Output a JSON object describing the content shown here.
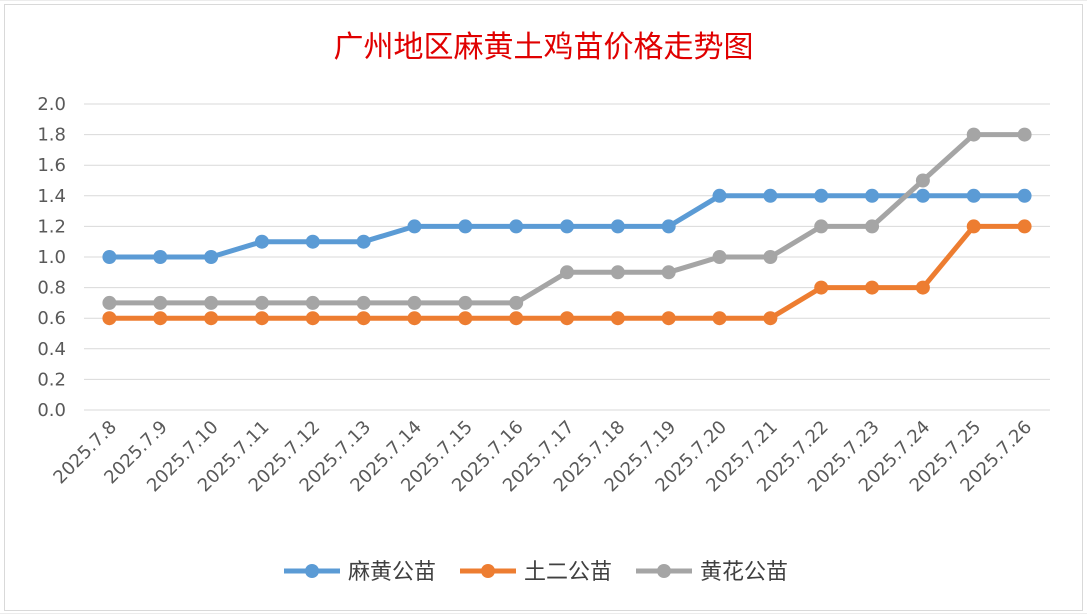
{
  "chart_data": {
    "type": "line",
    "title": "广州地区麻黄土鸡苗价格走势图",
    "xlabel": "",
    "ylabel": "",
    "categories": [
      "2025.7.8",
      "2025.7.9",
      "2025.7.10",
      "2025.7.11",
      "2025.7.12",
      "2025.7.13",
      "2025.7.14",
      "2025.7.15",
      "2025.7.16",
      "2025.7.17",
      "2025.7.18",
      "2025.7.19",
      "2025.7.20",
      "2025.7.21",
      "2025.7.22",
      "2025.7.23",
      "2025.7.24",
      "2025.7.25",
      "2025.7.26"
    ],
    "ylim": [
      0,
      2.0
    ],
    "yticks": [
      "0.0",
      "0.2",
      "0.4",
      "0.6",
      "0.8",
      "1.0",
      "1.2",
      "1.4",
      "1.6",
      "1.8",
      "2.0"
    ],
    "grid": true,
    "legend_position": "bottom",
    "series": [
      {
        "name": "麻黄公苗",
        "color": "#5b9bd5",
        "values": [
          1.0,
          1.0,
          1.0,
          1.1,
          1.1,
          1.1,
          1.2,
          1.2,
          1.2,
          1.2,
          1.2,
          1.2,
          1.4,
          1.4,
          1.4,
          1.4,
          1.4,
          1.4,
          1.4
        ]
      },
      {
        "name": "土二公苗",
        "color": "#ed7d31",
        "values": [
          0.6,
          0.6,
          0.6,
          0.6,
          0.6,
          0.6,
          0.6,
          0.6,
          0.6,
          0.6,
          0.6,
          0.6,
          0.6,
          0.6,
          0.8,
          0.8,
          0.8,
          1.2,
          1.2
        ]
      },
      {
        "name": "黄花公苗",
        "color": "#a5a5a5",
        "values": [
          0.7,
          0.7,
          0.7,
          0.7,
          0.7,
          0.7,
          0.7,
          0.7,
          0.7,
          0.9,
          0.9,
          0.9,
          1.0,
          1.0,
          1.2,
          1.2,
          1.5,
          1.8,
          1.8
        ]
      }
    ]
  }
}
